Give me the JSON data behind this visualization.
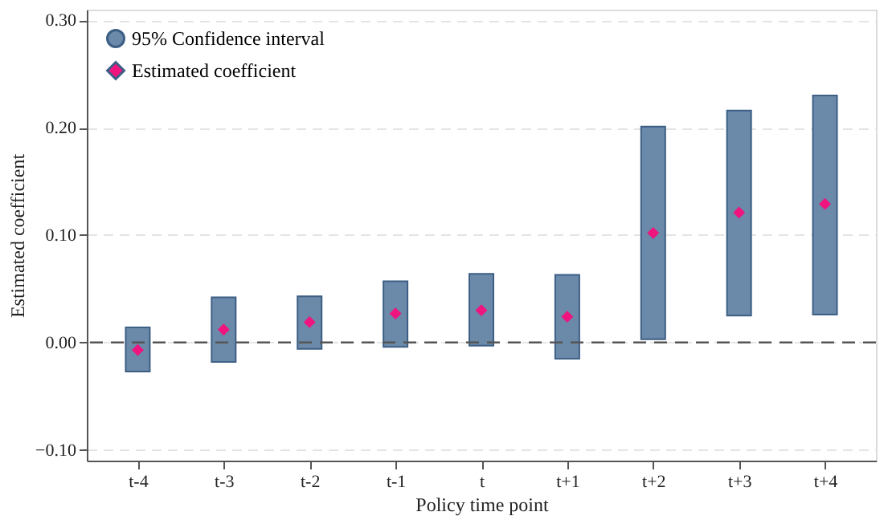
{
  "chart_data": {
    "type": "bar",
    "xlabel": "Policy time point",
    "ylabel": "Estimated coefficient",
    "categories": [
      "t-4",
      "t-3",
      "t-2",
      "t-1",
      "t",
      "t+1",
      "t+2",
      "t+3",
      "t+4"
    ],
    "series": [
      {
        "name": "95% Confidence interval",
        "color": "#6b89a8",
        "base": [
          -0.027,
          -0.018,
          -0.006,
          -0.004,
          -0.003,
          -0.015,
          0.003,
          0.025,
          0.026
        ],
        "values": [
          0.041,
          0.06,
          0.049,
          0.061,
          0.067,
          0.078,
          0.198,
          0.191,
          0.204
        ]
      },
      {
        "name": "Estimated coefficient",
        "type": "scatter",
        "color": "#f0147f",
        "marker": "diamond",
        "values": [
          -0.007,
          0.012,
          0.019,
          0.027,
          0.03,
          0.024,
          0.102,
          0.121,
          0.129
        ]
      }
    ],
    "ylim": [
      -0.11,
      0.31
    ],
    "yticks": [
      {
        "value": -0.1,
        "label": "−0.10"
      },
      {
        "value": 0,
        "label": "0.00"
      },
      {
        "value": 0.1,
        "label": "0.10"
      },
      {
        "value": 0.2,
        "label": "0.20"
      },
      {
        "value": 0.3,
        "label": "0.30"
      }
    ],
    "ref_lines": [
      {
        "axis": "y",
        "value": 0,
        "line_style": "dashed",
        "color": "#555555"
      }
    ],
    "grid": "y",
    "legend": "top left"
  }
}
